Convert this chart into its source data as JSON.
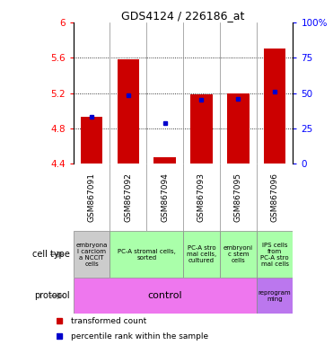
{
  "title": "GDS4124 / 226186_at",
  "samples": [
    "GSM867091",
    "GSM867092",
    "GSM867094",
    "GSM867093",
    "GSM867095",
    "GSM867096"
  ],
  "bar_bottoms": [
    4.4,
    4.4,
    4.4,
    4.4,
    4.4,
    4.4
  ],
  "bar_tops": [
    4.93,
    5.58,
    4.48,
    5.19,
    5.2,
    5.7
  ],
  "percentile_values": [
    4.93,
    5.18,
    4.86,
    5.13,
    5.14,
    5.22
  ],
  "ylim_left": [
    4.4,
    6.0
  ],
  "ylim_right": [
    0,
    100
  ],
  "yticks_left": [
    4.4,
    4.8,
    5.2,
    5.6,
    6.0
  ],
  "ytick_labels_left": [
    "4.4",
    "4.8",
    "5.2",
    "5.6",
    "6"
  ],
  "ytick_labels_right": [
    "0",
    "25",
    "50",
    "75",
    "100%"
  ],
  "bar_color": "#cc0000",
  "dot_color": "#0000cc",
  "bg_color": "#ffffff",
  "row_label_cell_type": "cell type",
  "row_label_protocol": "protocol",
  "legend_bar": "transformed count",
  "legend_dot": "percentile rank within the sample",
  "cell_type_data": [
    {
      "xmin": 0,
      "xmax": 1,
      "color": "#cccccc",
      "text": "embryona\nl carciom\na NCCIT\ncells"
    },
    {
      "xmin": 1,
      "xmax": 3,
      "color": "#aaffaa",
      "text": "PC-A stromal cells,\nsorted"
    },
    {
      "xmin": 3,
      "xmax": 4,
      "color": "#aaffaa",
      "text": "PC-A stro\nmal cells,\ncultured"
    },
    {
      "xmin": 4,
      "xmax": 5,
      "color": "#aaffaa",
      "text": "embryoni\nc stem\ncells"
    },
    {
      "xmin": 5,
      "xmax": 6,
      "color": "#aaffaa",
      "text": "IPS cells\nfrom\nPC-A stro\nmal cells"
    }
  ],
  "proto_control": {
    "xmin": 0,
    "xmax": 5,
    "color": "#ee77ee",
    "text": "control"
  },
  "proto_reprogram": {
    "xmin": 5,
    "xmax": 6,
    "color": "#bb77ee",
    "text": "reprogram\nming"
  }
}
